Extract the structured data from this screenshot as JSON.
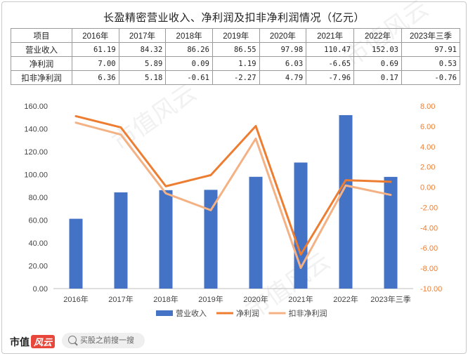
{
  "title": "长盈精密营业收入、净利润及扣非净利润情况（亿元）",
  "table": {
    "header": [
      "项目",
      "2016年",
      "2017年",
      "2018年",
      "2019年",
      "2020年",
      "2021年",
      "2022年",
      "2023年三季"
    ],
    "rows": [
      {
        "label": "营业收入",
        "cells": [
          "61.19",
          "84.32",
          "86.26",
          "86.55",
          "97.98",
          "110.47",
          "152.03",
          "97.91"
        ]
      },
      {
        "label": "净利润",
        "cells": [
          "7.00",
          "5.89",
          "0.09",
          "1.19",
          "6.03",
          "-6.65",
          "0.69",
          "0.53"
        ]
      },
      {
        "label": "扣非净利润",
        "cells": [
          "6.36",
          "5.18",
          "-0.61",
          "-2.27",
          "4.79",
          "-7.96",
          "0.17",
          "-0.76"
        ]
      }
    ]
  },
  "chart_data": {
    "type": "bar",
    "categories": [
      "2016年",
      "2017年",
      "2018年",
      "2019年",
      "2020年",
      "2021年",
      "2022年",
      "2023年三季"
    ],
    "series": [
      {
        "name": "营业收入",
        "type": "bar",
        "axis": "left",
        "color": "#4472c4",
        "values": [
          61.19,
          84.32,
          86.26,
          86.55,
          97.98,
          110.47,
          152.03,
          97.91
        ]
      },
      {
        "name": "净利润",
        "type": "line",
        "axis": "right",
        "color": "#ed7d31",
        "values": [
          7.0,
          5.89,
          0.09,
          1.19,
          6.03,
          -6.65,
          0.69,
          0.53
        ]
      },
      {
        "name": "扣非净利润",
        "type": "line",
        "axis": "right",
        "color": "#f4b183",
        "values": [
          6.36,
          5.18,
          -0.61,
          -2.27,
          4.79,
          -7.96,
          0.17,
          -0.76
        ]
      }
    ],
    "y_left": {
      "ylim": [
        0,
        160
      ],
      "ticks": [
        "0.00",
        "20.00",
        "40.00",
        "60.00",
        "80.00",
        "100.00",
        "120.00",
        "140.00",
        "160.00"
      ]
    },
    "y_right": {
      "ylim": [
        -10,
        8
      ],
      "ticks": [
        "-10.00",
        "-8.00",
        "-6.00",
        "-4.00",
        "-2.00",
        "0.00",
        "2.00",
        "4.00",
        "6.00",
        "8.00"
      ],
      "color": "#ed7d31"
    },
    "grid": false,
    "legend": "bottom"
  },
  "footer": {
    "brand": "市值",
    "brand_logo": "风云",
    "search_placeholder": "买股之前搜一搜"
  },
  "watermark": "市值风云"
}
